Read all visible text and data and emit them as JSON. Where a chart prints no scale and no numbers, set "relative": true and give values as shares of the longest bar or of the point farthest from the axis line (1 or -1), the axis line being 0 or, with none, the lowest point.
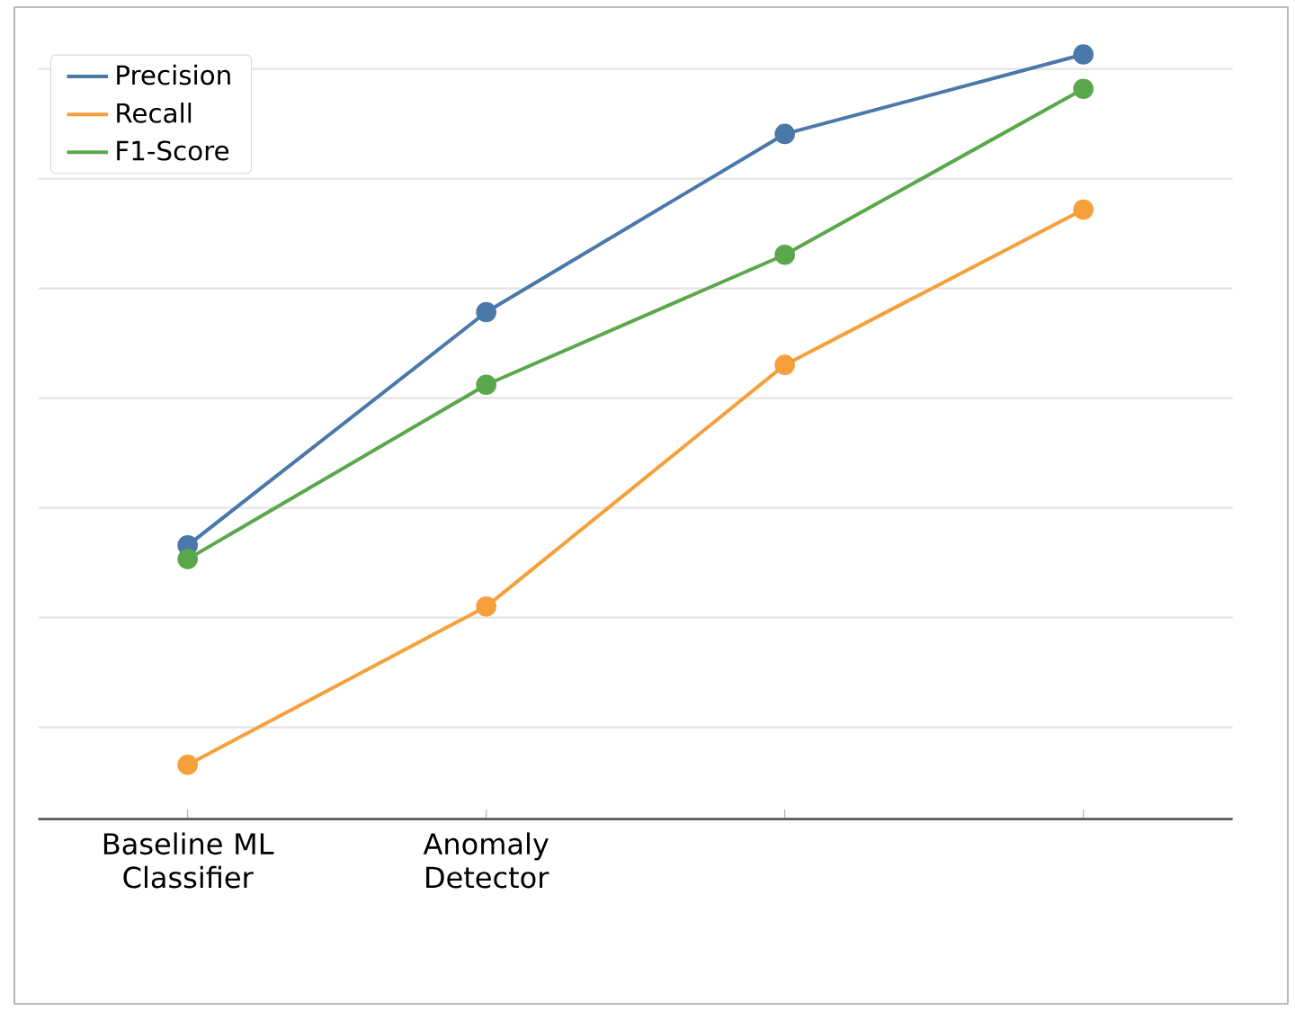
{
  "chart_data": {
    "type": "line",
    "relative": true,
    "categories": [
      "Baseline ML Classifier",
      "Anomaly Detector",
      null,
      null
    ],
    "series": [
      {
        "name": "Precision",
        "color": "#4a78a8",
        "values": [
          0.358,
          0.663,
          0.896,
          1
        ]
      },
      {
        "name": "Recall",
        "color": "#f6a03c",
        "values": [
          0.071,
          0.278,
          0.594,
          0.797
        ]
      },
      {
        "name": "F1-Score",
        "color": "#5ba84c",
        "values": [
          0.34,
          0.568,
          0.738,
          0.955
        ]
      }
    ],
    "marker": "circle",
    "line_style": "solid",
    "grid": "y",
    "legend": "top left"
  }
}
